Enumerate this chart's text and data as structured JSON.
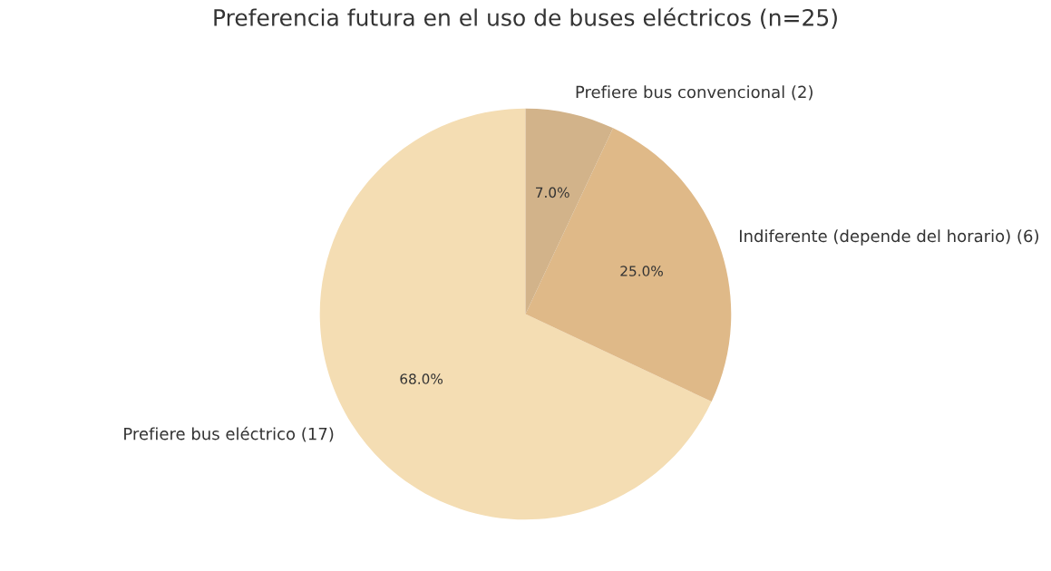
{
  "chart_data": {
    "type": "pie",
    "title": "Preferencia futura en el uso de buses eléctricos (n=25)",
    "categories": [
      "Prefiere bus eléctrico (17)",
      "Indiferente (depende del horario) (6)",
      "Prefiere bus convencional (2)"
    ],
    "values": [
      68,
      25,
      7
    ],
    "colors": [
      "#f4ddb3",
      "#dfb988",
      "#d2b38a"
    ],
    "value_labels": [
      "68.0%",
      "25.0%",
      "7.0%"
    ]
  }
}
